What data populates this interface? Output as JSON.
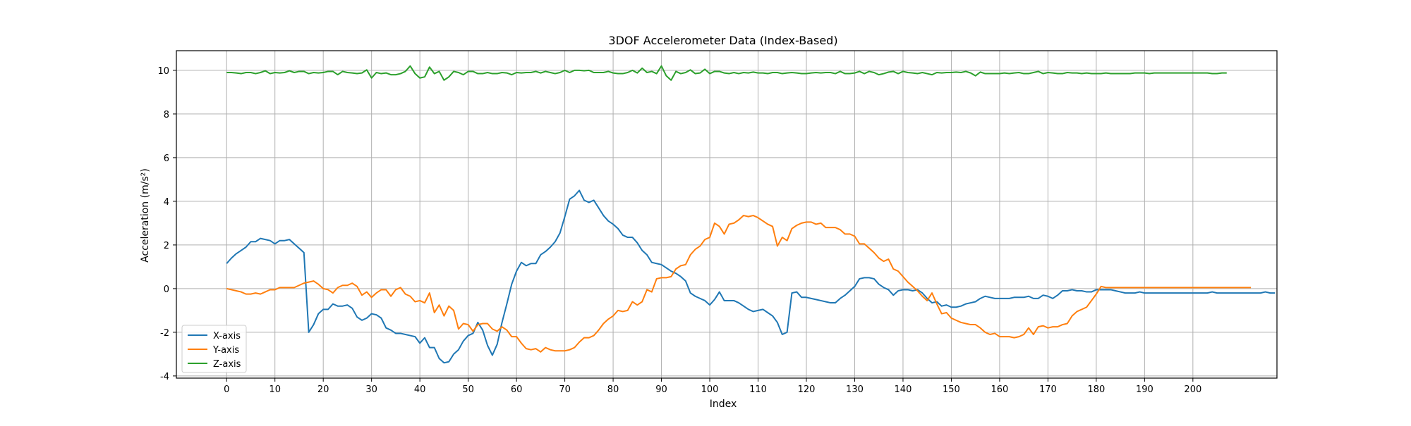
{
  "chart_data": {
    "type": "line",
    "title": "3DOF Accelerometer Data (Index-Based)",
    "xlabel": "Index",
    "ylabel": "Acceleration (m/s²)",
    "xlim": [
      -10.4,
      217.4
    ],
    "ylim": [
      -4.1,
      10.9
    ],
    "xticks": [
      0,
      10,
      20,
      30,
      40,
      50,
      60,
      70,
      80,
      90,
      100,
      110,
      120,
      130,
      140,
      150,
      160,
      170,
      180,
      190,
      200
    ],
    "yticks": [
      -4,
      -2,
      0,
      2,
      4,
      6,
      8,
      10
    ],
    "grid": true,
    "legend_position": "lower-left",
    "x_start": 0,
    "x_step": 1,
    "series": [
      {
        "name": "X-axis",
        "color": "#1f77b4",
        "values": [
          1.15,
          1.4,
          1.6,
          1.75,
          1.9,
          2.15,
          2.15,
          2.3,
          2.25,
          2.2,
          2.05,
          2.2,
          2.2,
          2.25,
          2.05,
          1.85,
          1.65,
          -2.0,
          -1.65,
          -1.15,
          -0.95,
          -0.95,
          -0.7,
          -0.8,
          -0.8,
          -0.75,
          -0.9,
          -1.3,
          -1.45,
          -1.35,
          -1.15,
          -1.2,
          -1.35,
          -1.8,
          -1.9,
          -2.05,
          -2.05,
          -2.1,
          -2.15,
          -2.2,
          -2.5,
          -2.25,
          -2.7,
          -2.7,
          -3.2,
          -3.4,
          -3.35,
          -3.0,
          -2.8,
          -2.4,
          -2.15,
          -2.05,
          -1.55,
          -1.9,
          -2.6,
          -3.05,
          -2.55,
          -1.55,
          -0.7,
          0.2,
          0.8,
          1.2,
          1.05,
          1.15,
          1.15,
          1.55,
          1.7,
          1.9,
          2.15,
          2.55,
          3.3,
          4.1,
          4.25,
          4.5,
          4.05,
          3.95,
          4.05,
          3.7,
          3.35,
          3.1,
          2.95,
          2.75,
          2.45,
          2.35,
          2.35,
          2.1,
          1.75,
          1.55,
          1.2,
          1.15,
          1.1,
          0.95,
          0.8,
          0.7,
          0.55,
          0.35,
          -0.2,
          -0.35,
          -0.45,
          -0.55,
          -0.75,
          -0.5,
          -0.15,
          -0.55,
          -0.55,
          -0.55,
          -0.65,
          -0.8,
          -0.95,
          -1.05,
          -1.0,
          -0.95,
          -1.1,
          -1.25,
          -1.55,
          -2.1,
          -2.0,
          -0.2,
          -0.15,
          -0.4,
          -0.4,
          -0.45,
          -0.5,
          -0.55,
          -0.6,
          -0.65,
          -0.65,
          -0.45,
          -0.3,
          -0.1,
          0.1,
          0.45,
          0.5,
          0.5,
          0.45,
          0.2,
          0.05,
          -0.05,
          -0.3,
          -0.1,
          -0.05,
          -0.05,
          -0.1,
          -0.05,
          -0.2,
          -0.45,
          -0.65,
          -0.6,
          -0.8,
          -0.75,
          -0.85,
          -0.85,
          -0.8,
          -0.7,
          -0.65,
          -0.6,
          -0.45,
          -0.35,
          -0.4,
          -0.45,
          -0.45,
          -0.45,
          -0.45,
          -0.4,
          -0.4,
          -0.4,
          -0.35,
          -0.45,
          -0.45,
          -0.3,
          -0.35,
          -0.45,
          -0.3,
          -0.1,
          -0.1,
          -0.05,
          -0.1,
          -0.1,
          -0.15,
          -0.15,
          -0.05,
          -0.05,
          -0.05,
          -0.05,
          -0.1,
          -0.15,
          -0.2,
          -0.2,
          -0.2,
          -0.15,
          -0.2,
          -0.2,
          -0.2,
          -0.2,
          -0.2,
          -0.2,
          -0.2,
          -0.2,
          -0.2,
          -0.2,
          -0.2,
          -0.2,
          -0.2,
          -0.2,
          -0.15,
          -0.2,
          -0.2,
          -0.2,
          -0.2,
          -0.2,
          -0.2,
          -0.2,
          -0.2,
          -0.2,
          -0.2,
          -0.15,
          -0.2,
          -0.2
        ]
      },
      {
        "name": "Y-axis",
        "color": "#ff7f0e",
        "values": [
          0.0,
          -0.05,
          -0.1,
          -0.15,
          -0.25,
          -0.25,
          -0.2,
          -0.25,
          -0.15,
          -0.05,
          -0.05,
          0.05,
          0.05,
          0.05,
          0.05,
          0.15,
          0.25,
          0.3,
          0.35,
          0.2,
          0.0,
          -0.05,
          -0.2,
          0.05,
          0.15,
          0.15,
          0.25,
          0.1,
          -0.3,
          -0.15,
          -0.4,
          -0.2,
          -0.05,
          -0.05,
          -0.35,
          -0.05,
          0.05,
          -0.25,
          -0.35,
          -0.6,
          -0.55,
          -0.65,
          -0.2,
          -1.1,
          -0.75,
          -1.25,
          -0.8,
          -1.0,
          -1.85,
          -1.6,
          -1.65,
          -1.95,
          -1.65,
          -1.6,
          -1.6,
          -1.85,
          -1.95,
          -1.75,
          -1.9,
          -2.2,
          -2.2,
          -2.5,
          -2.75,
          -2.8,
          -2.75,
          -2.9,
          -2.7,
          -2.8,
          -2.85,
          -2.85,
          -2.85,
          -2.8,
          -2.7,
          -2.45,
          -2.25,
          -2.25,
          -2.15,
          -1.9,
          -1.6,
          -1.4,
          -1.25,
          -1.0,
          -1.05,
          -1.0,
          -0.6,
          -0.75,
          -0.6,
          -0.05,
          -0.15,
          0.45,
          0.5,
          0.5,
          0.55,
          0.9,
          1.05,
          1.1,
          1.55,
          1.8,
          1.95,
          2.25,
          2.35,
          3.0,
          2.85,
          2.5,
          2.95,
          3.0,
          3.15,
          3.35,
          3.3,
          3.35,
          3.25,
          3.1,
          2.95,
          2.85,
          1.95,
          2.35,
          2.2,
          2.75,
          2.9,
          3.0,
          3.05,
          3.05,
          2.95,
          3.0,
          2.8,
          2.8,
          2.8,
          2.7,
          2.5,
          2.5,
          2.4,
          2.05,
          2.05,
          1.85,
          1.65,
          1.4,
          1.25,
          1.35,
          0.9,
          0.8,
          0.55,
          0.3,
          0.1,
          -0.1,
          -0.35,
          -0.55,
          -0.2,
          -0.7,
          -1.15,
          -1.1,
          -1.35,
          -1.45,
          -1.55,
          -1.6,
          -1.65,
          -1.65,
          -1.8,
          -2.0,
          -2.1,
          -2.05,
          -2.2,
          -2.2,
          -2.2,
          -2.25,
          -2.2,
          -2.1,
          -1.8,
          -2.1,
          -1.75,
          -1.7,
          -1.8,
          -1.75,
          -1.75,
          -1.65,
          -1.6,
          -1.25,
          -1.05,
          -0.95,
          -0.85,
          -0.55,
          -0.25,
          0.1,
          0.05,
          0.05,
          0.05,
          0.05,
          0.05,
          0.05,
          0.05,
          0.05,
          0.05,
          0.05,
          0.05,
          0.05,
          0.05,
          0.05,
          0.05,
          0.05,
          0.05,
          0.05,
          0.05,
          0.05,
          0.05,
          0.05,
          0.05,
          0.05,
          0.05,
          0.05,
          0.05,
          0.05,
          0.05,
          0.05,
          0.05
        ]
      },
      {
        "name": "Z-axis",
        "color": "#2ca02c",
        "values": [
          9.9,
          9.9,
          9.88,
          9.85,
          9.9,
          9.9,
          9.85,
          9.9,
          9.98,
          9.85,
          9.9,
          9.88,
          9.9,
          9.98,
          9.9,
          9.95,
          9.95,
          9.85,
          9.9,
          9.88,
          9.9,
          9.95,
          9.95,
          9.8,
          9.95,
          9.9,
          9.88,
          9.85,
          9.88,
          10.02,
          9.65,
          9.9,
          9.85,
          9.88,
          9.8,
          9.8,
          9.85,
          9.95,
          10.2,
          9.85,
          9.65,
          9.7,
          10.15,
          9.85,
          9.95,
          9.55,
          9.7,
          9.95,
          9.9,
          9.8,
          9.95,
          9.95,
          9.85,
          9.85,
          9.9,
          9.85,
          9.85,
          9.9,
          9.88,
          9.8,
          9.9,
          9.88,
          9.9,
          9.9,
          9.95,
          9.88,
          9.95,
          9.9,
          9.85,
          9.9,
          10.0,
          9.9,
          10.0,
          10.0,
          9.98,
          10.0,
          9.9,
          9.9,
          9.9,
          9.95,
          9.88,
          9.85,
          9.85,
          9.9,
          10.0,
          9.88,
          10.1,
          9.9,
          9.95,
          9.85,
          10.2,
          9.75,
          9.55,
          9.95,
          9.85,
          9.9,
          10.02,
          9.85,
          9.88,
          10.05,
          9.85,
          9.95,
          9.95,
          9.88,
          9.85,
          9.9,
          9.85,
          9.9,
          9.88,
          9.92,
          9.88,
          9.88,
          9.85,
          9.9,
          9.9,
          9.85,
          9.88,
          9.9,
          9.88,
          9.85,
          9.85,
          9.88,
          9.9,
          9.88,
          9.9,
          9.9,
          9.85,
          9.95,
          9.85,
          9.85,
          9.88,
          9.95,
          9.85,
          9.95,
          9.9,
          9.8,
          9.85,
          9.92,
          9.95,
          9.85,
          9.95,
          9.9,
          9.88,
          9.85,
          9.9,
          9.85,
          9.8,
          9.9,
          9.88,
          9.9,
          9.9,
          9.92,
          9.9,
          9.95,
          9.88,
          9.75,
          9.92,
          9.85,
          9.85,
          9.85,
          9.85,
          9.88,
          9.85,
          9.88,
          9.9,
          9.85,
          9.85,
          9.9,
          9.95,
          9.85,
          9.9,
          9.88,
          9.85,
          9.85,
          9.9,
          9.88,
          9.88,
          9.85,
          9.88,
          9.85,
          9.85,
          9.85,
          9.88,
          9.85,
          9.85,
          9.85,
          9.85,
          9.85,
          9.88,
          9.88,
          9.88,
          9.85,
          9.88,
          9.88,
          9.88,
          9.88,
          9.88,
          9.88,
          9.88,
          9.88,
          9.88,
          9.88,
          9.88,
          9.88,
          9.85,
          9.85,
          9.88,
          9.88
        ]
      }
    ]
  }
}
